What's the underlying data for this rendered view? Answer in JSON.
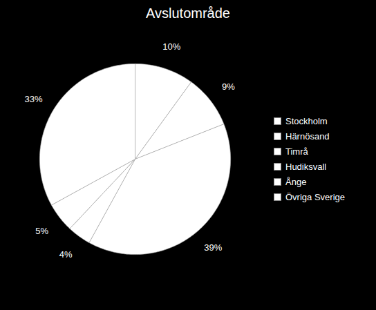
{
  "chart_data": {
    "type": "pie",
    "title": "Avslutområde",
    "categories": [
      "Stockholm",
      "Härnösand",
      "Timrå",
      "Hudiksvall",
      "Ånge",
      "Övriga Sverige"
    ],
    "values": [
      10,
      9,
      39,
      4,
      5,
      33
    ],
    "value_labels": [
      "10%",
      "9%",
      "39%",
      "4%",
      "5%",
      "33%"
    ],
    "color": "#ffffff",
    "data_labels": true,
    "legend": "right"
  }
}
